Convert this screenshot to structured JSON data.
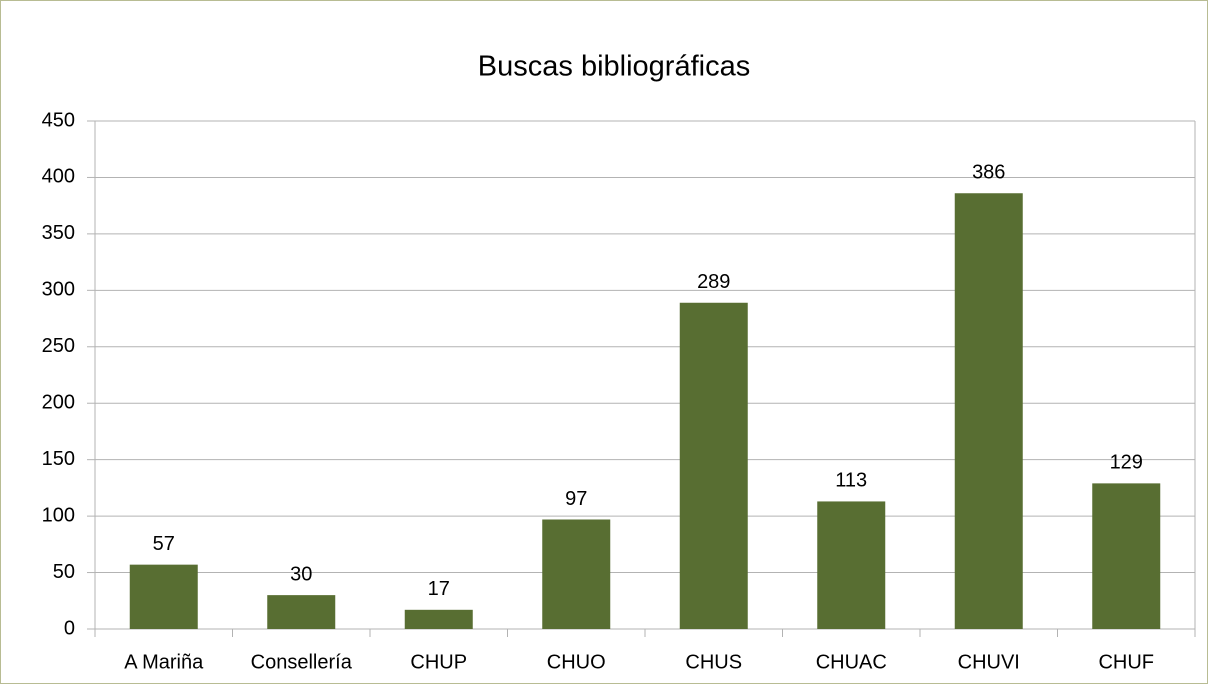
{
  "chart_data": {
    "type": "bar",
    "title": "Buscas bibliográficas",
    "categories": [
      "A Mariña",
      "Consellería",
      "CHUP",
      "CHUO",
      "CHUS",
      "CHUAC",
      "CHUVI",
      "CHUF"
    ],
    "values": [
      57,
      30,
      17,
      97,
      289,
      113,
      386,
      129
    ],
    "color": "#586e32",
    "ylim": [
      0,
      450
    ],
    "yticks": [
      0,
      50,
      100,
      150,
      200,
      250,
      300,
      350,
      400,
      450
    ],
    "grid": true
  }
}
